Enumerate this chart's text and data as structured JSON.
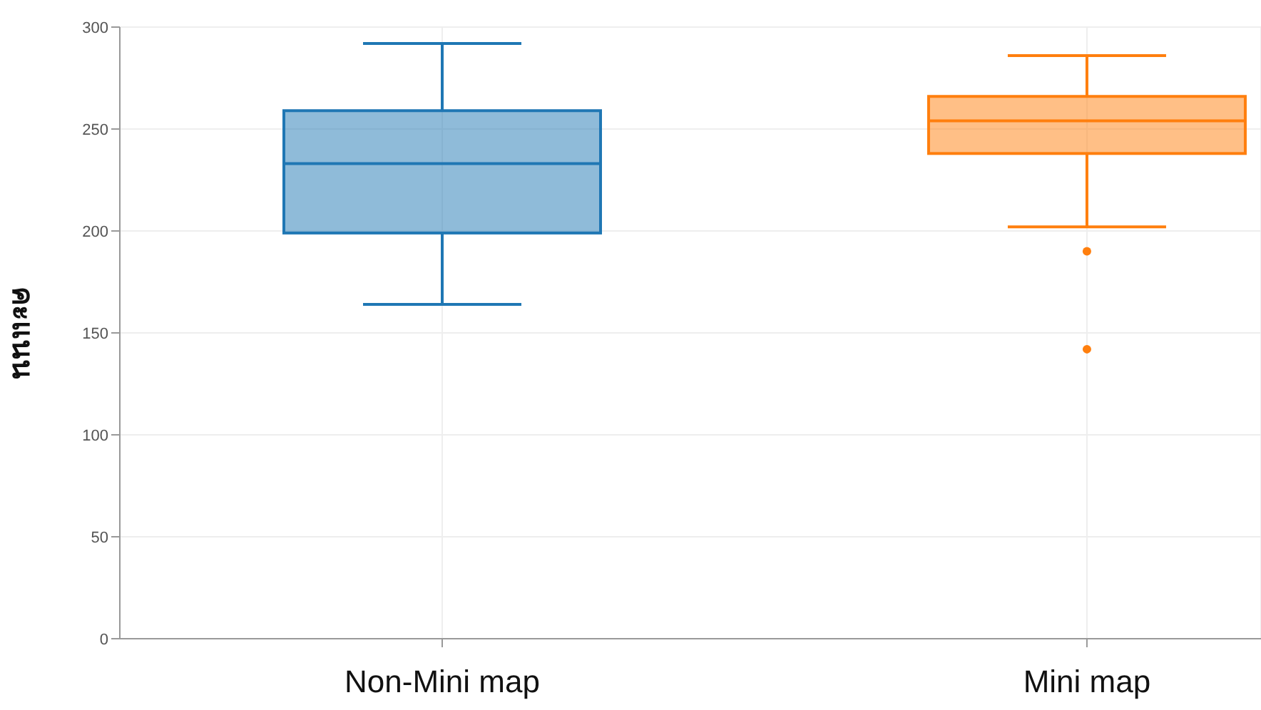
{
  "chart_data": {
    "type": "box",
    "ylabel": "คะแนน",
    "categories": [
      "Non-Mini map",
      "Mini map"
    ],
    "colors": [
      "#1f77b4",
      "#ff7f0e"
    ],
    "boxes": [
      {
        "low": 164,
        "q1": 199,
        "median": 233,
        "q3": 259,
        "high": 292
      },
      {
        "low": 202,
        "q1": 238,
        "median": 254,
        "q3": 266,
        "high": 286,
        "outliers": [
          190,
          142
        ]
      }
    ],
    "ylim": [
      0,
      300
    ],
    "yticks": [
      0,
      50,
      100,
      150,
      200,
      250,
      300
    ],
    "grid": true
  }
}
